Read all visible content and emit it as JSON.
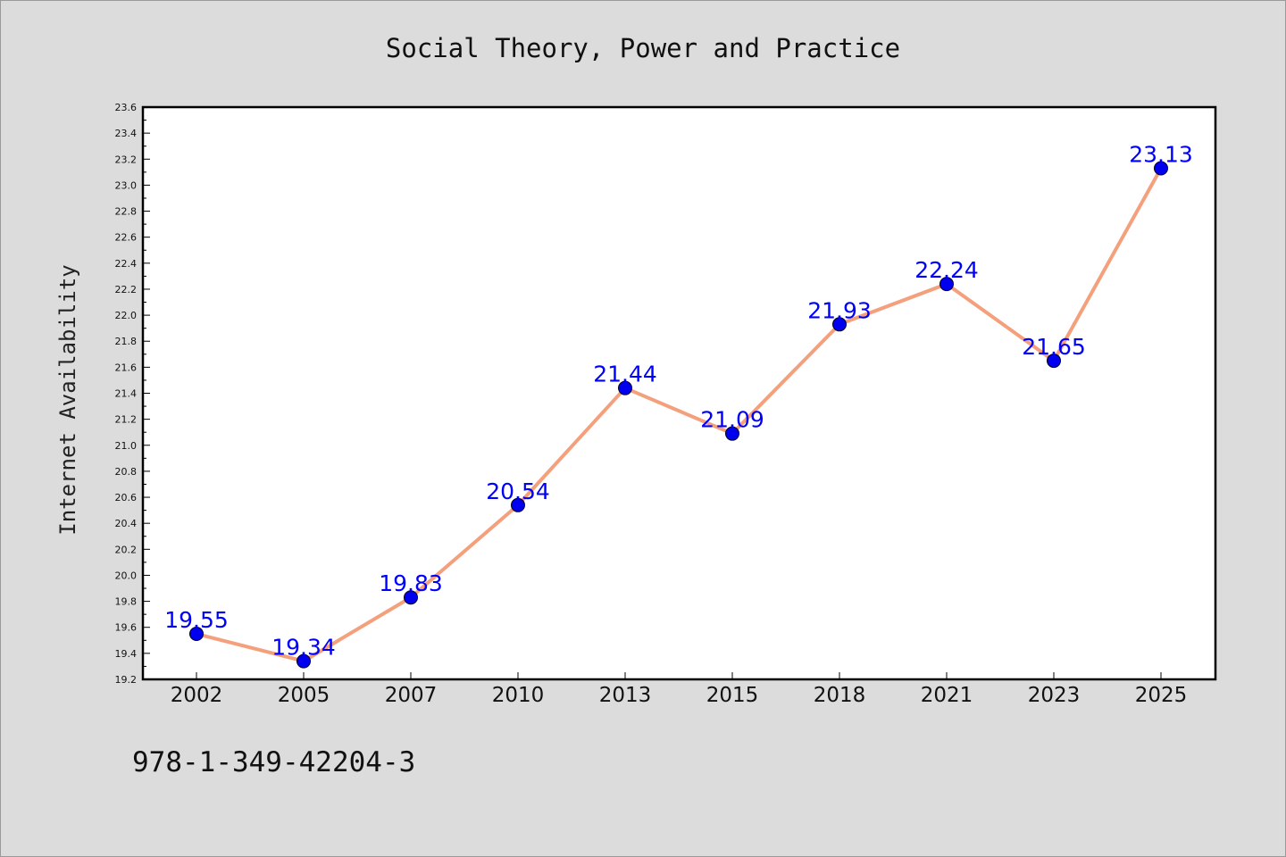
{
  "chart_data": {
    "type": "line",
    "title": "Social Theory, Power and Practice",
    "xlabel": "",
    "ylabel": "Internet Availability",
    "categories": [
      "2002",
      "2005",
      "2007",
      "2010",
      "2013",
      "2015",
      "2018",
      "2021",
      "2023",
      "2025"
    ],
    "series": [
      {
        "values": [
          19.55,
          19.34,
          19.83,
          20.54,
          21.44,
          21.09,
          21.93,
          22.24,
          21.65,
          23.13
        ],
        "line_color": "#f4a07c",
        "marker_color": "#0000ee",
        "label_color": "#0000ff"
      }
    ],
    "data_labels": [
      "19.55",
      "19.34",
      "19.83",
      "20.54",
      "21.44",
      "21.09",
      "21.93",
      "22.24",
      "21.65",
      "23.13"
    ],
    "ylim": [
      19.2,
      23.6
    ],
    "yticks": [
      "19.2",
      "19.4",
      "19.6",
      "19.8",
      "20.0",
      "20.2",
      "20.4",
      "20.6",
      "20.8",
      "21.0",
      "21.2",
      "21.4",
      "21.6",
      "21.8",
      "22.0",
      "22.2",
      "22.4",
      "22.6",
      "22.8",
      "23.0",
      "23.2",
      "23.4",
      "23.6"
    ],
    "grid": false,
    "legend": "none"
  },
  "footer": {
    "isbn": "978-1-349-42204-3"
  },
  "colors": {
    "background": "#dcdcdc",
    "plot_background": "#ffffff",
    "axis": "#000000"
  }
}
